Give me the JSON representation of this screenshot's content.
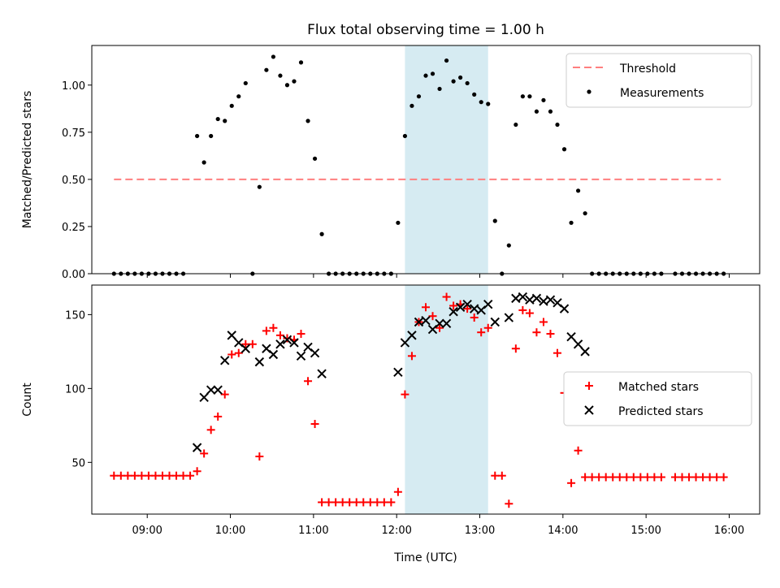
{
  "chart_data": {
    "title": "Flux total observing time = 1.00 h",
    "xlabel": "Time (UTC)",
    "x_ticks": [
      "09:00",
      "10:00",
      "11:00",
      "12:00",
      "13:00",
      "14:00",
      "15:00",
      "16:00"
    ],
    "shaded_interval": [
      "12:06",
      "13:06"
    ],
    "shade_color": "#add8e6",
    "panels": [
      {
        "type": "scatter",
        "ylabel": "Matched/Predicted stars",
        "ylim": [
          0.0,
          1.21
        ],
        "y_ticks": [
          "0.00",
          "0.25",
          "0.50",
          "0.75",
          "1.00"
        ],
        "legend_position": "upper right",
        "threshold": {
          "name": "Threshold",
          "value": 0.5,
          "x_range": [
            "08:36",
            "15:54"
          ],
          "color": "#ff7f7f",
          "style": "dashed"
        },
        "series": [
          {
            "name": "Measurements",
            "marker": "dot",
            "color": "#000000",
            "points": [
              [
                "08:36",
                0
              ],
              [
                "08:41",
                0
              ],
              [
                "08:46",
                0
              ],
              [
                "08:51",
                0
              ],
              [
                "08:56",
                0
              ],
              [
                "09:01",
                0
              ],
              [
                "09:06",
                0
              ],
              [
                "09:11",
                0
              ],
              [
                "09:16",
                0
              ],
              [
                "09:21",
                0
              ],
              [
                "09:26",
                0
              ],
              [
                "09:36",
                0.73
              ],
              [
                "09:41",
                0.59
              ],
              [
                "09:46",
                0.73
              ],
              [
                "09:51",
                0.82
              ],
              [
                "09:56",
                0.81
              ],
              [
                "10:01",
                0.89
              ],
              [
                "10:06",
                0.94
              ],
              [
                "10:11",
                1.01
              ],
              [
                "10:16",
                0
              ],
              [
                "10:21",
                0.46
              ],
              [
                "10:26",
                1.08
              ],
              [
                "10:31",
                1.15
              ],
              [
                "10:36",
                1.05
              ],
              [
                "10:41",
                1.0
              ],
              [
                "10:46",
                1.02
              ],
              [
                "10:51",
                1.12
              ],
              [
                "10:56",
                0.81
              ],
              [
                "11:01",
                0.61
              ],
              [
                "11:06",
                0.21
              ],
              [
                "11:11",
                0
              ],
              [
                "11:16",
                0
              ],
              [
                "11:21",
                0
              ],
              [
                "11:26",
                0
              ],
              [
                "11:31",
                0
              ],
              [
                "11:36",
                0
              ],
              [
                "11:41",
                0
              ],
              [
                "11:46",
                0
              ],
              [
                "11:51",
                0
              ],
              [
                "11:56",
                0
              ],
              [
                "12:01",
                0.27
              ],
              [
                "12:06",
                0.73
              ],
              [
                "12:11",
                0.89
              ],
              [
                "12:16",
                0.94
              ],
              [
                "12:21",
                1.05
              ],
              [
                "12:26",
                1.06
              ],
              [
                "12:31",
                0.98
              ],
              [
                "12:36",
                1.13
              ],
              [
                "12:41",
                1.02
              ],
              [
                "12:46",
                1.04
              ],
              [
                "12:51",
                1.01
              ],
              [
                "12:56",
                0.95
              ],
              [
                "13:01",
                0.91
              ],
              [
                "13:06",
                0.9
              ],
              [
                "13:11",
                0.28
              ],
              [
                "13:16",
                0
              ],
              [
                "13:21",
                0.15
              ],
              [
                "13:26",
                0.79
              ],
              [
                "13:31",
                0.94
              ],
              [
                "13:36",
                0.94
              ],
              [
                "13:41",
                0.86
              ],
              [
                "13:46",
                0.92
              ],
              [
                "13:51",
                0.86
              ],
              [
                "13:56",
                0.79
              ],
              [
                "14:01",
                0.66
              ],
              [
                "14:06",
                0.27
              ],
              [
                "14:11",
                0.44
              ],
              [
                "14:16",
                0.32
              ],
              [
                "14:21",
                0
              ],
              [
                "14:26",
                0
              ],
              [
                "14:31",
                0
              ],
              [
                "14:36",
                0
              ],
              [
                "14:41",
                0
              ],
              [
                "14:46",
                0
              ],
              [
                "14:51",
                0
              ],
              [
                "14:56",
                0
              ],
              [
                "15:01",
                0
              ],
              [
                "15:06",
                0
              ],
              [
                "15:11",
                0
              ],
              [
                "15:21",
                0
              ],
              [
                "15:26",
                0
              ],
              [
                "15:31",
                0
              ],
              [
                "15:36",
                0
              ],
              [
                "15:41",
                0
              ],
              [
                "15:46",
                0
              ],
              [
                "15:51",
                0
              ],
              [
                "15:56",
                0
              ]
            ]
          }
        ]
      },
      {
        "type": "scatter",
        "ylabel": "Count",
        "ylim": [
          15,
          170
        ],
        "y_ticks": [
          "50",
          "100",
          "150"
        ],
        "legend_position": "center right",
        "series": [
          {
            "name": "Matched stars",
            "marker": "plus",
            "color": "#ff0000",
            "points": [
              [
                "08:36",
                41
              ],
              [
                "08:41",
                41
              ],
              [
                "08:46",
                41
              ],
              [
                "08:51",
                41
              ],
              [
                "08:56",
                41
              ],
              [
                "09:01",
                41
              ],
              [
                "09:06",
                41
              ],
              [
                "09:11",
                41
              ],
              [
                "09:16",
                41
              ],
              [
                "09:21",
                41
              ],
              [
                "09:26",
                41
              ],
              [
                "09:31",
                41
              ],
              [
                "09:36",
                44
              ],
              [
                "09:41",
                56
              ],
              [
                "09:46",
                72
              ],
              [
                "09:51",
                81
              ],
              [
                "09:56",
                96
              ],
              [
                "10:01",
                123
              ],
              [
                "10:06",
                124
              ],
              [
                "10:11",
                130
              ],
              [
                "10:16",
                130
              ],
              [
                "10:21",
                54
              ],
              [
                "10:26",
                139
              ],
              [
                "10:31",
                141
              ],
              [
                "10:36",
                136
              ],
              [
                "10:41",
                134
              ],
              [
                "10:46",
                133
              ],
              [
                "10:51",
                137
              ],
              [
                "10:56",
                105
              ],
              [
                "11:01",
                76
              ],
              [
                "11:06",
                23
              ],
              [
                "11:11",
                23
              ],
              [
                "11:16",
                23
              ],
              [
                "11:21",
                23
              ],
              [
                "11:26",
                23
              ],
              [
                "11:31",
                23
              ],
              [
                "11:36",
                23
              ],
              [
                "11:41",
                23
              ],
              [
                "11:46",
                23
              ],
              [
                "11:51",
                23
              ],
              [
                "11:56",
                23
              ],
              [
                "12:01",
                30
              ],
              [
                "12:06",
                96
              ],
              [
                "12:11",
                122
              ],
              [
                "12:16",
                145
              ],
              [
                "12:21",
                155
              ],
              [
                "12:26",
                149
              ],
              [
                "12:31",
                141
              ],
              [
                "12:36",
                162
              ],
              [
                "12:41",
                156
              ],
              [
                "12:46",
                157
              ],
              [
                "12:51",
                154
              ],
              [
                "12:56",
                148
              ],
              [
                "13:01",
                138
              ],
              [
                "13:06",
                141
              ],
              [
                "13:11",
                41
              ],
              [
                "13:16",
                41
              ],
              [
                "13:21",
                22
              ],
              [
                "13:26",
                127
              ],
              [
                "13:31",
                153
              ],
              [
                "13:36",
                151
              ],
              [
                "13:41",
                138
              ],
              [
                "13:46",
                145
              ],
              [
                "13:51",
                137
              ],
              [
                "13:56",
                124
              ],
              [
                "14:01",
                97
              ],
              [
                "14:06",
                36
              ],
              [
                "14:11",
                58
              ],
              [
                "14:16",
                40
              ],
              [
                "14:21",
                40
              ],
              [
                "14:26",
                40
              ],
              [
                "14:31",
                40
              ],
              [
                "14:36",
                40
              ],
              [
                "14:41",
                40
              ],
              [
                "14:46",
                40
              ],
              [
                "14:51",
                40
              ],
              [
                "14:56",
                40
              ],
              [
                "15:01",
                40
              ],
              [
                "15:06",
                40
              ],
              [
                "15:11",
                40
              ],
              [
                "15:21",
                40
              ],
              [
                "15:26",
                40
              ],
              [
                "15:31",
                40
              ],
              [
                "15:36",
                40
              ],
              [
                "15:41",
                40
              ],
              [
                "15:46",
                40
              ],
              [
                "15:51",
                40
              ],
              [
                "15:56",
                40
              ]
            ]
          },
          {
            "name": "Predicted stars",
            "marker": "x",
            "color": "#000000",
            "points": [
              [
                "09:36",
                60
              ],
              [
                "09:41",
                94
              ],
              [
                "09:46",
                99
              ],
              [
                "09:51",
                99
              ],
              [
                "09:56",
                119
              ],
              [
                "10:01",
                136
              ],
              [
                "10:06",
                131
              ],
              [
                "10:11",
                127
              ],
              [
                "10:21",
                118
              ],
              [
                "10:26",
                127
              ],
              [
                "10:31",
                123
              ],
              [
                "10:36",
                130
              ],
              [
                "10:41",
                133
              ],
              [
                "10:46",
                131
              ],
              [
                "10:51",
                122
              ],
              [
                "10:56",
                128
              ],
              [
                "11:01",
                124
              ],
              [
                "11:06",
                110
              ],
              [
                "12:01",
                111
              ],
              [
                "12:06",
                131
              ],
              [
                "12:11",
                136
              ],
              [
                "12:16",
                145
              ],
              [
                "12:21",
                146
              ],
              [
                "12:26",
                140
              ],
              [
                "12:31",
                144
              ],
              [
                "12:36",
                144
              ],
              [
                "12:41",
                152
              ],
              [
                "12:46",
                155
              ],
              [
                "12:51",
                157
              ],
              [
                "12:56",
                154
              ],
              [
                "13:01",
                153
              ],
              [
                "13:06",
                157
              ],
              [
                "13:11",
                145
              ],
              [
                "13:21",
                148
              ],
              [
                "13:26",
                161
              ],
              [
                "13:31",
                162
              ],
              [
                "13:36",
                160
              ],
              [
                "13:41",
                161
              ],
              [
                "13:46",
                159
              ],
              [
                "13:51",
                160
              ],
              [
                "13:56",
                158
              ],
              [
                "14:01",
                154
              ],
              [
                "14:06",
                135
              ],
              [
                "14:11",
                130
              ],
              [
                "14:16",
                125
              ]
            ]
          }
        ]
      }
    ]
  }
}
